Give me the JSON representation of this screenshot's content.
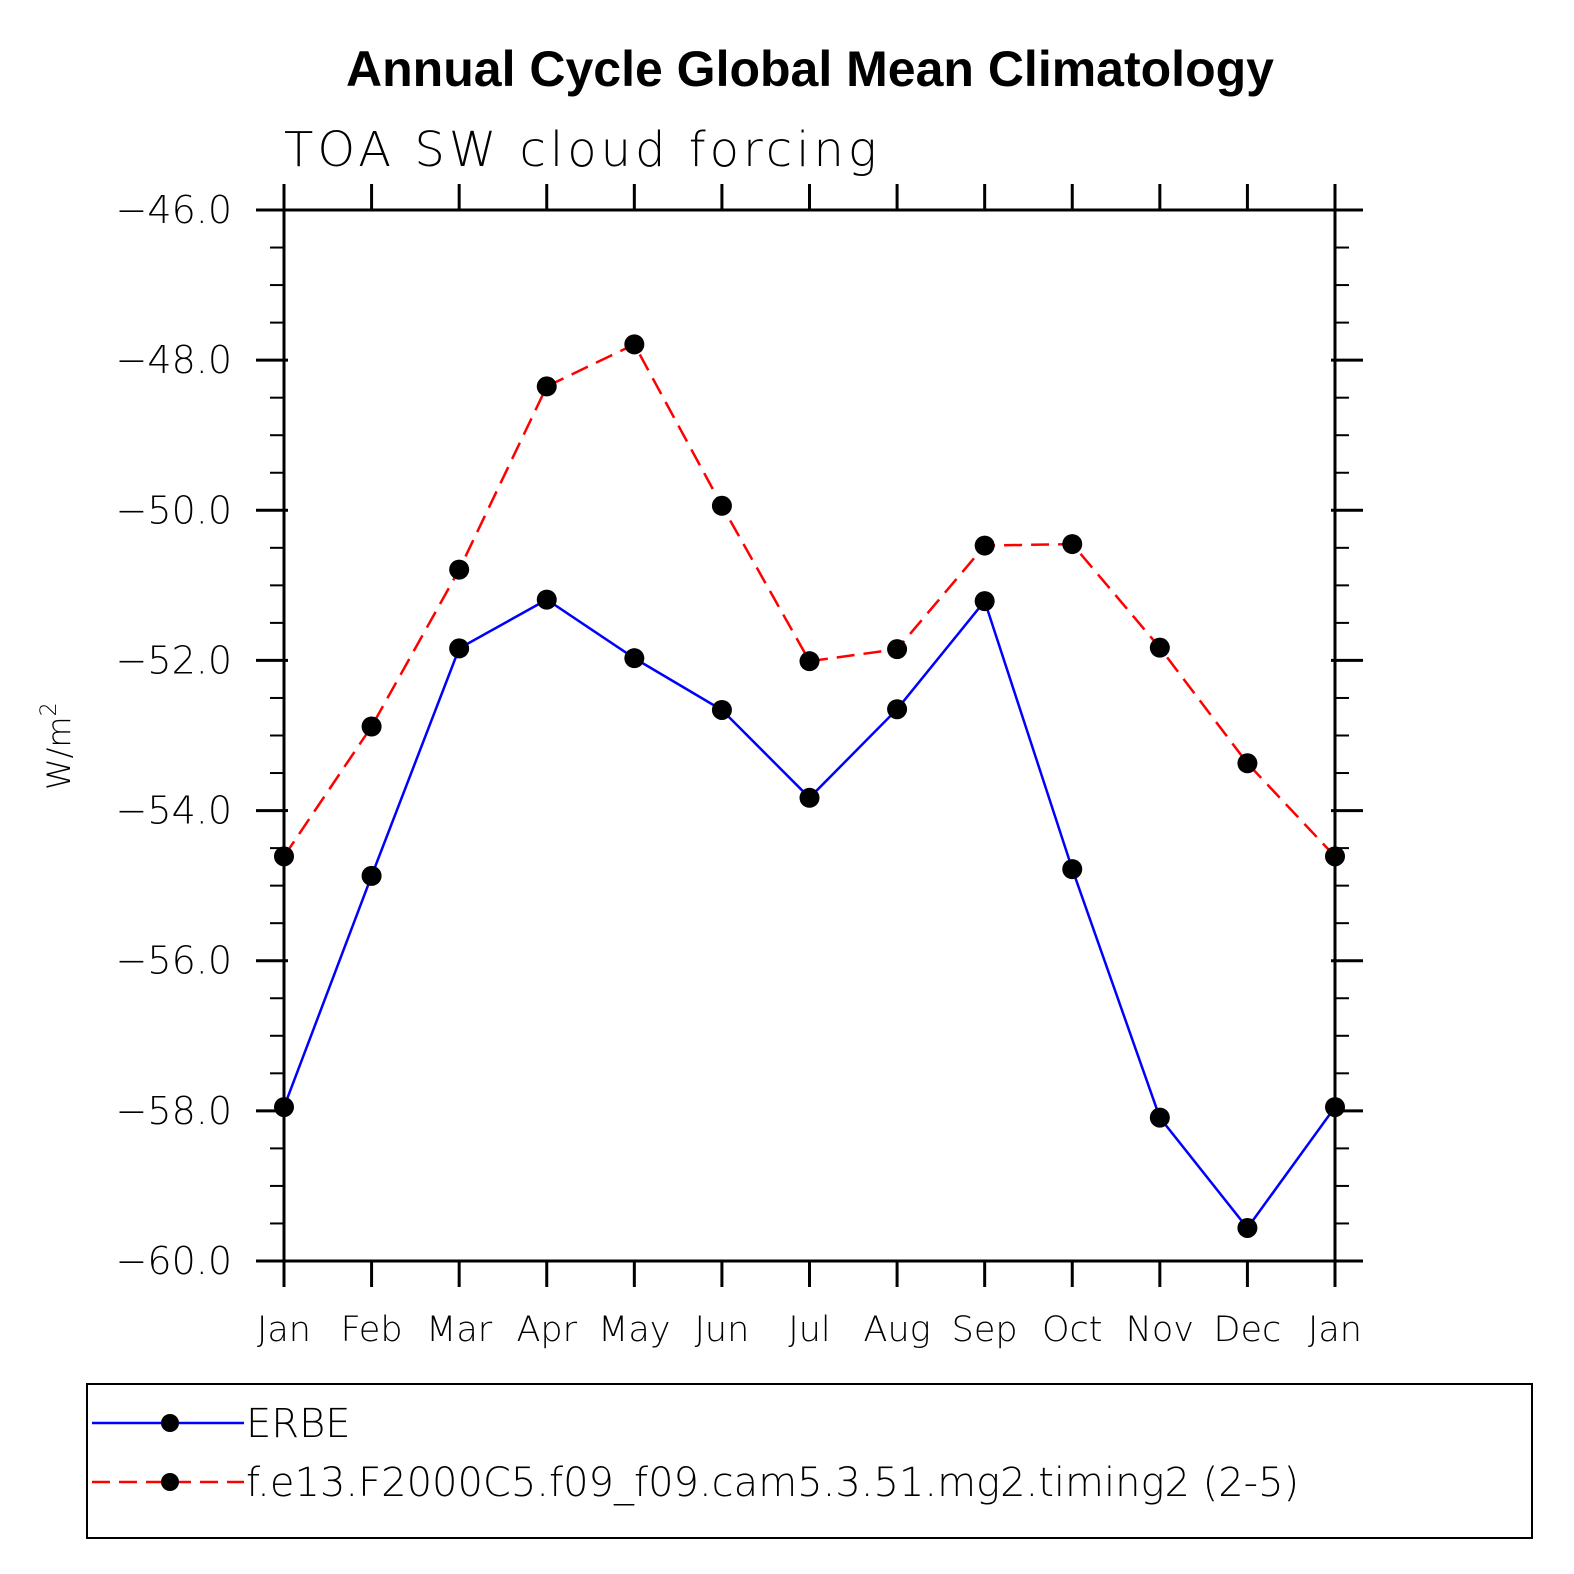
{
  "chart_data": {
    "type": "line",
    "title": "Annual Cycle Global Mean Climatology",
    "subtitle": "TOA SW cloud forcing",
    "ylabel_base": "W/m",
    "ylabel_sup": "2",
    "xlabel": "",
    "categories": [
      "Jan",
      "Feb",
      "Mar",
      "Apr",
      "May",
      "Jun",
      "Jul",
      "Aug",
      "Sep",
      "Oct",
      "Nov",
      "Dec",
      "Jan"
    ],
    "ylim": [
      -60.0,
      -46.0
    ],
    "yticks": [
      "-60.0",
      "-58.0",
      "-56.0",
      "-54.0",
      "-52.0",
      "-50.0",
      "-48.0",
      "-46.0"
    ],
    "ytick_values": [
      -60,
      -58,
      -56,
      -54,
      -52,
      -50,
      -48,
      -46
    ],
    "grid": false,
    "legend_position": "bottom",
    "series": [
      {
        "name": "ERBE",
        "color": "#0000ff",
        "style": "solid",
        "marker": "filled-circle",
        "values": [
          -57.95,
          -54.87,
          -51.84,
          -51.19,
          -51.97,
          -52.66,
          -53.83,
          -52.65,
          -51.21,
          -54.78,
          -58.09,
          -59.56,
          -57.95
        ]
      },
      {
        "name": "f.e13.F2000C5.f09_f09.cam5.3.51.mg2.timing2 (2-5)",
        "color": "#ff0000",
        "style": "dashed",
        "marker": "filled-circle",
        "values": [
          -54.61,
          -52.88,
          -50.79,
          -48.35,
          -47.79,
          -49.94,
          -52.01,
          -51.85,
          -50.47,
          -50.45,
          -51.83,
          -53.37,
          -54.61
        ]
      }
    ]
  }
}
